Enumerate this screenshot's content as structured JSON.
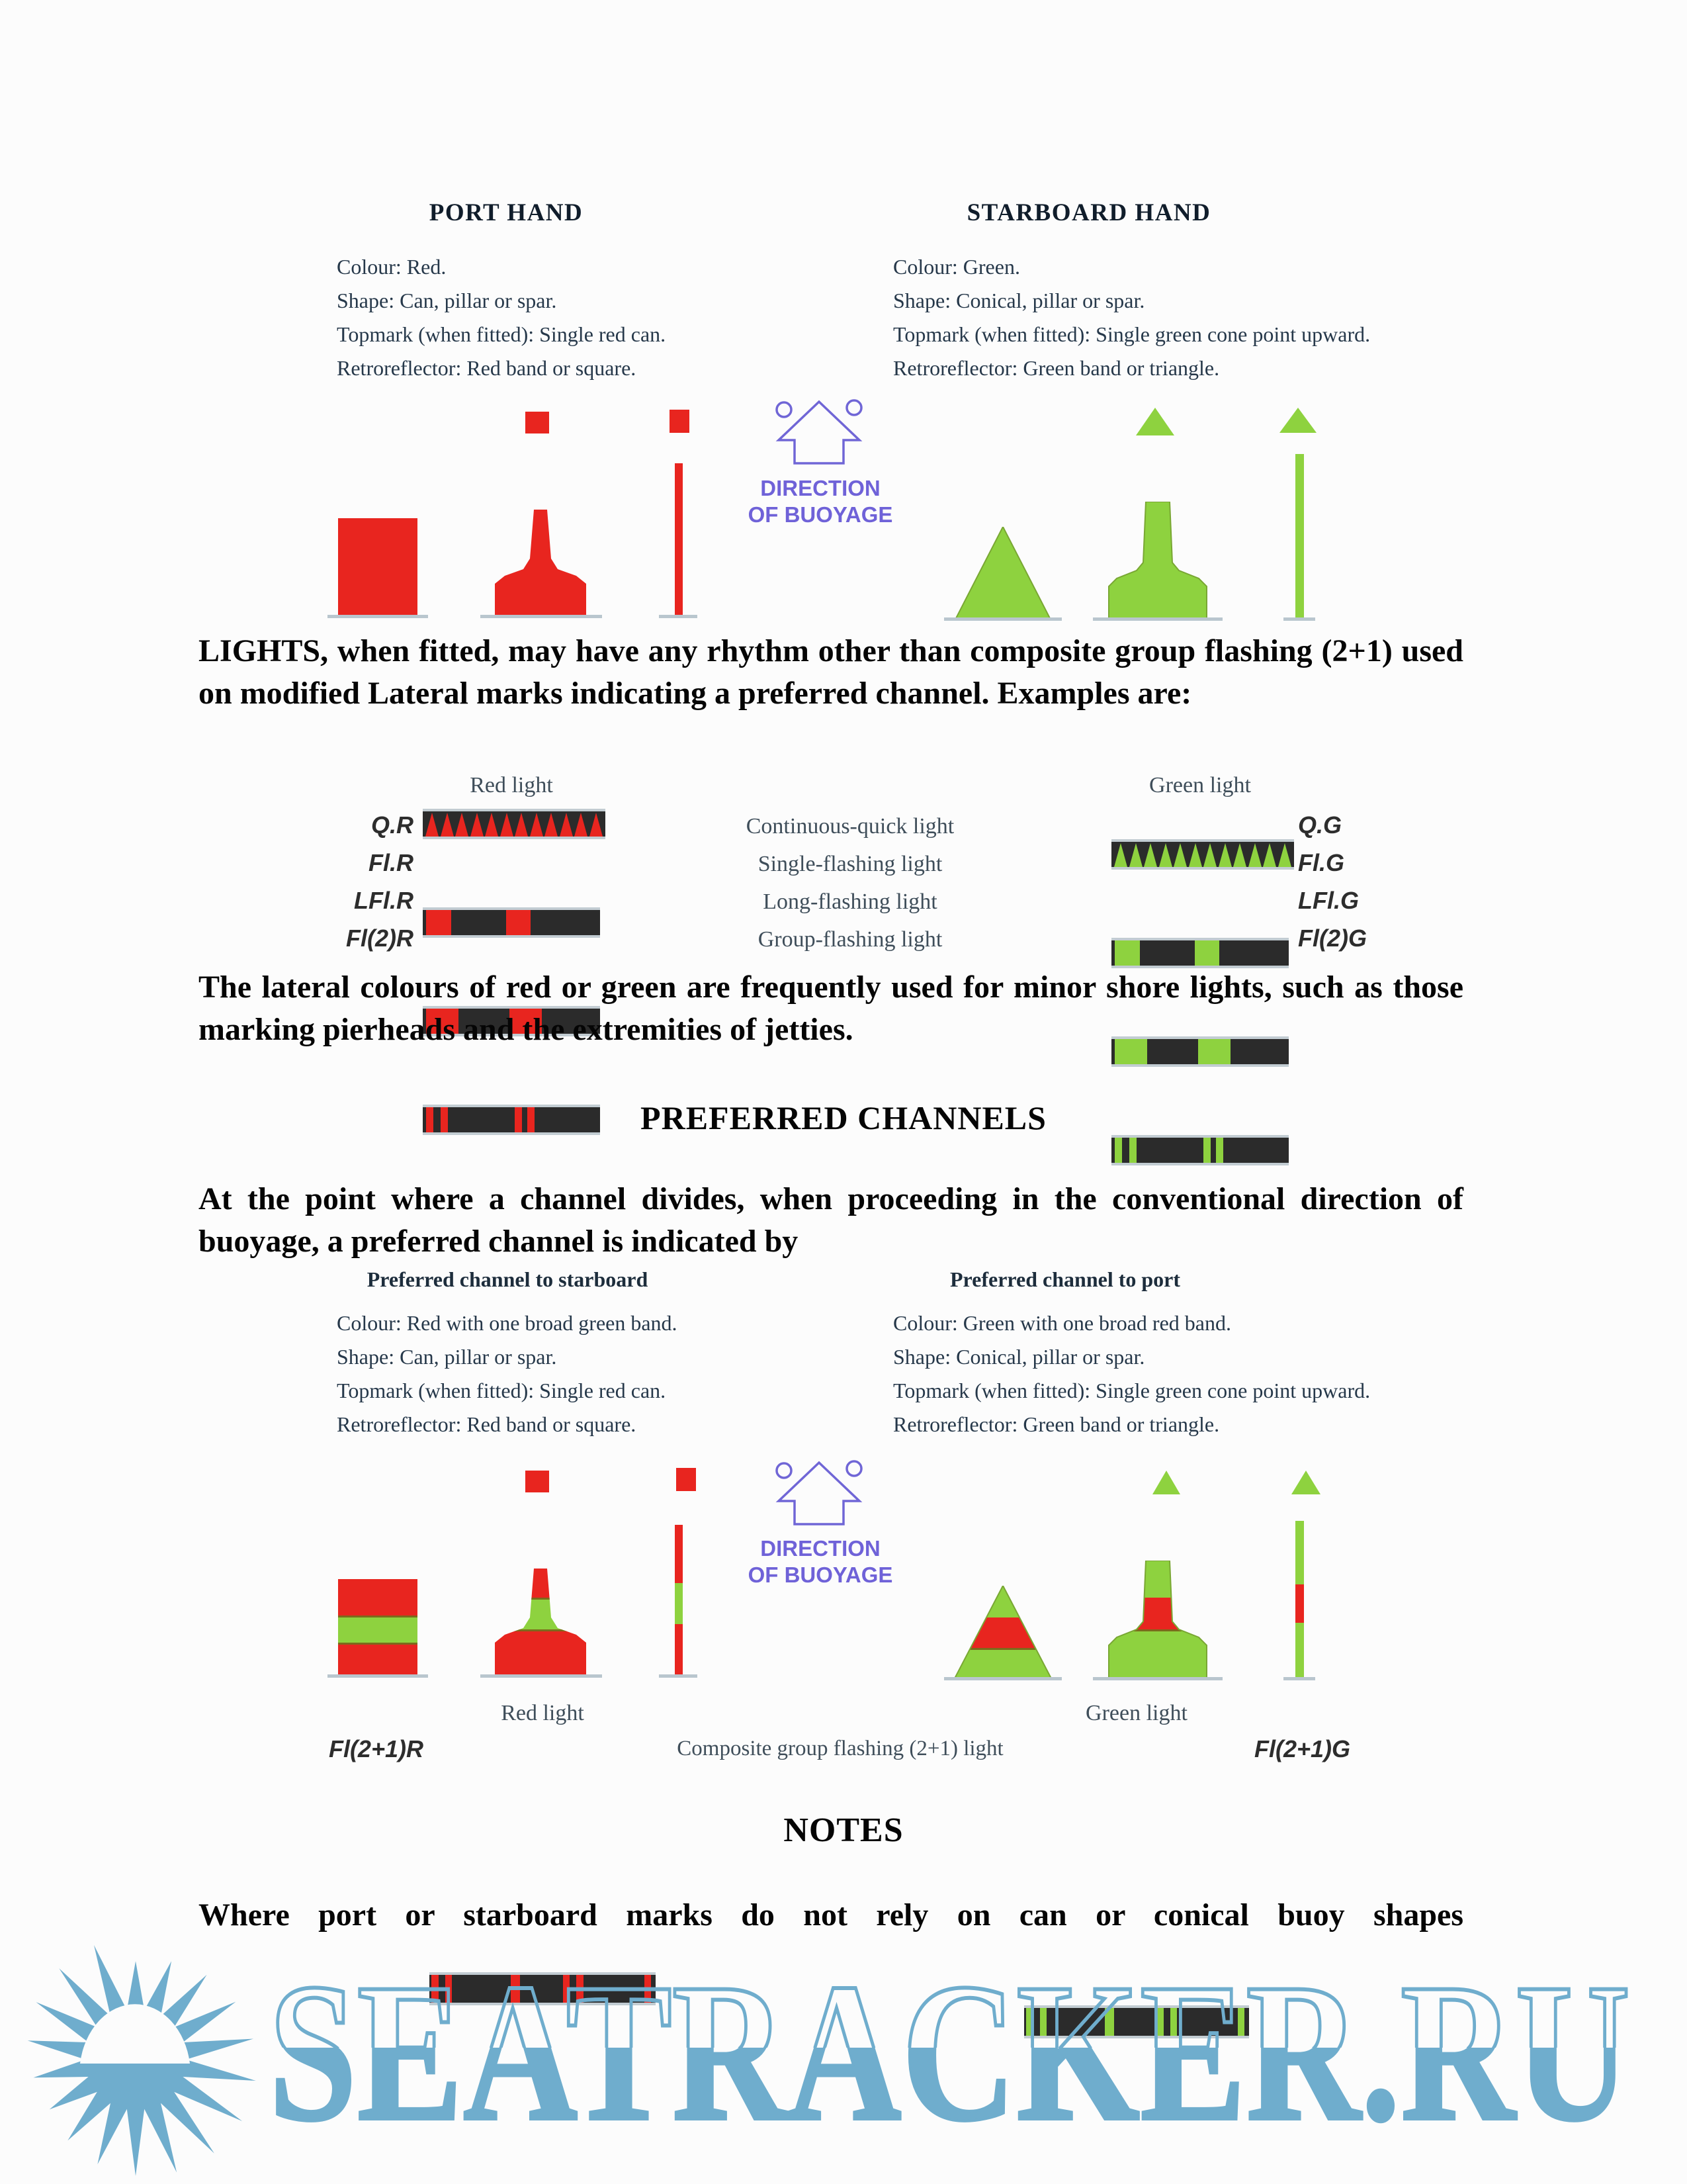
{
  "colors": {
    "red": "#e8251f",
    "green": "#8ed23f",
    "green_stroke": "#79a733",
    "purple": "#6f62d8",
    "bar_dark": "#2b2b2b",
    "watermark_blue": "#6fadcd"
  },
  "header": {
    "port": {
      "title": "PORT HAND",
      "details": [
        "Colour: Red.",
        "Shape: Can, pillar or spar.",
        "Topmark (when fitted): Single red can.",
        "Retroreflector: Red band or square."
      ]
    },
    "starboard": {
      "title": "STARBOARD HAND",
      "details": [
        "Colour: Green.",
        "Shape: Conical, pillar or spar.",
        "Topmark (when fitted): Single green cone point upward.",
        "Retroreflector: Green band or triangle."
      ]
    }
  },
  "direction_symbol": {
    "line1": "DIRECTION",
    "line2": "OF BUOYAGE"
  },
  "lights_paragraph": "LIGHTS, when fitted, may have any rhythm other than composite group flashing (2+1) used on modified Lateral marks indicating a preferred channel. Examples are:",
  "light_table": {
    "red_header": "Red light",
    "green_header": "Green light",
    "rows": [
      {
        "red_label": "Q.R",
        "description": "Continuous-quick light",
        "green_label": "Q.G",
        "pattern": "quick"
      },
      {
        "red_label": "Fl.R",
        "description": "Single-flashing light",
        "green_label": "Fl.G",
        "pattern": "fl"
      },
      {
        "red_label": "LFl.R",
        "description": "Long-flashing light",
        "green_label": "LFl.G",
        "pattern": "lfl"
      },
      {
        "red_label": "Fl(2)R",
        "description": "Group-flashing light",
        "green_label": "Fl(2)G",
        "pattern": "fl2"
      }
    ]
  },
  "light_patterns": {
    "quick": {
      "kind": "quick",
      "count": 12
    },
    "fl": {
      "kind": "blocks",
      "blocks": [
        [
          2,
          14
        ],
        [
          47,
          14
        ]
      ]
    },
    "lfl": {
      "kind": "blocks",
      "blocks": [
        [
          2,
          18
        ],
        [
          49,
          18
        ]
      ]
    },
    "fl2": {
      "kind": "blocks",
      "blocks": [
        [
          2,
          4
        ],
        [
          10,
          4
        ],
        [
          52,
          4
        ],
        [
          59,
          4
        ]
      ]
    },
    "comp": {
      "kind": "blocks",
      "blocks": [
        [
          1,
          3
        ],
        [
          7,
          3
        ],
        [
          36,
          4
        ],
        [
          59,
          3
        ],
        [
          65,
          3
        ],
        [
          95,
          3
        ]
      ]
    }
  },
  "lateral_paragraph": "The lateral colours of red or green are frequently used for minor shore lights, such as those marking pierheads and the extremities of jetties.",
  "preferred": {
    "title": "PREFERRED CHANNELS",
    "intro": "At the point where a channel divides, when proceeding in the conventional direction of buoyage, a preferred channel is indicated by",
    "starboard": {
      "title": "Preferred channel to starboard",
      "details": [
        "Colour: Red with one broad green band.",
        "Shape: Can, pillar or spar.",
        "Topmark (when fitted): Single red can.",
        "Retroreflector: Red band or square."
      ]
    },
    "port": {
      "title": "Preferred channel to port",
      "details": [
        "Colour: Green with one broad red band.",
        "Shape: Conical, pillar or spar.",
        "Topmark (when fitted): Single green cone point upward.",
        "Retroreflector: Green band or triangle."
      ]
    }
  },
  "composite_row": {
    "red_header": "Red light",
    "green_header": "Green light",
    "red_label": "Fl(2+1)R",
    "description": "Composite group flashing (2+1) light",
    "green_label": "Fl(2+1)G",
    "pattern": "comp"
  },
  "notes": {
    "title": "NOTES",
    "text": "Where port or starboard marks do not rely on can or conical buoy shapes"
  },
  "watermark": {
    "text": "SEATRACKER.RU"
  }
}
